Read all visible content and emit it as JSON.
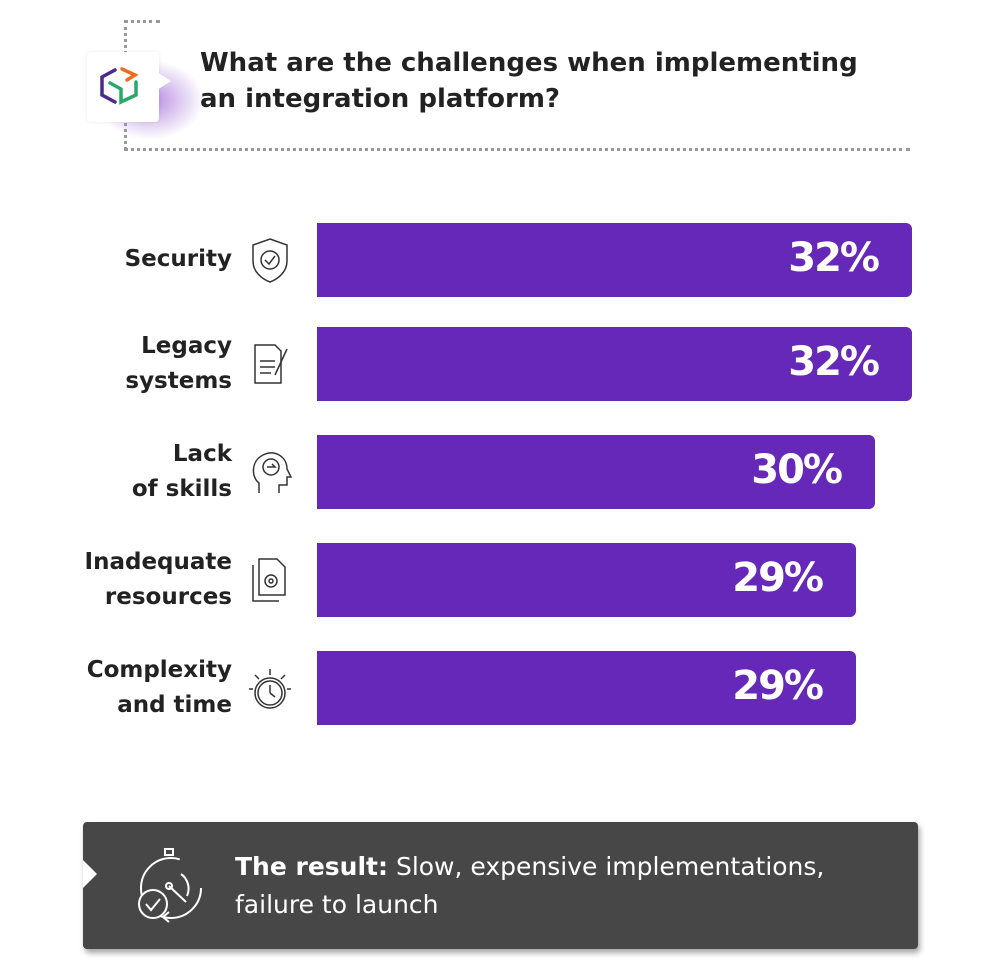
{
  "header": {
    "title": "What are the challenges when implementing an integration platform?",
    "icon": "cube-icon"
  },
  "chart_data": {
    "type": "bar",
    "orientation": "horizontal",
    "categories": [
      "Security",
      "Legacy systems",
      "Lack of skills",
      "Inadequate resources",
      "Complexity and time"
    ],
    "values": [
      32,
      32,
      30,
      29,
      29
    ],
    "data_labels": [
      "32%",
      "32%",
      "30%",
      "29%",
      "29%"
    ],
    "icons": [
      "shield-check-icon",
      "document-pen-icon",
      "head-brain-icon",
      "documents-gear-icon",
      "stopwatch-icon"
    ],
    "bar_color": "#6628b8",
    "unit": "%"
  },
  "result": {
    "bold": "The result:",
    "text": " Slow, expensive implementations, failure to launch",
    "icon": "stopwatch-cycle-check-icon"
  }
}
